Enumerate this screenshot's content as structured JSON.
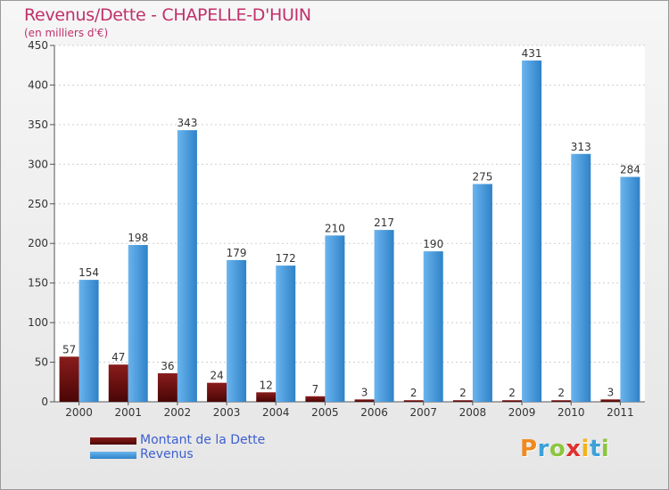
{
  "header": {
    "title": "Revenus/Dette - CHAPELLE-D'HUIN",
    "subtitle": "(en milliers d'€)"
  },
  "chart_data": {
    "type": "bar",
    "categories": [
      "2000",
      "2001",
      "2002",
      "2003",
      "2004",
      "2005",
      "2006",
      "2007",
      "2008",
      "2009",
      "2010",
      "2011"
    ],
    "series": [
      {
        "name": "Montant de la Dette",
        "color": "#6b0e0e",
        "values": [
          57,
          47,
          36,
          24,
          12,
          7,
          3,
          2,
          2,
          2,
          2,
          3
        ]
      },
      {
        "name": "Revenus",
        "color": "#4d9fe0",
        "values": [
          154,
          198,
          343,
          179,
          172,
          210,
          217,
          190,
          275,
          431,
          313,
          284
        ]
      }
    ],
    "yticks": [
      0,
      50,
      100,
      150,
      200,
      250,
      300,
      350,
      400,
      450
    ],
    "ylim": [
      0,
      450
    ],
    "grid": true,
    "legend_position": "bottom-left"
  },
  "colors": {
    "title": "#c0306a",
    "debt": "#6b0e0e",
    "revenue": "#4d9fe0",
    "legend_text": "#3d5fd0"
  },
  "logo": {
    "letters": [
      "P",
      "r",
      "o",
      "x",
      "i",
      "t",
      "i"
    ],
    "colors": [
      "#f08a1e",
      "#3da0d8",
      "#8cc63f",
      "#e0312e",
      "#f5b21a",
      "#3da0d8",
      "#8cc63f"
    ]
  }
}
